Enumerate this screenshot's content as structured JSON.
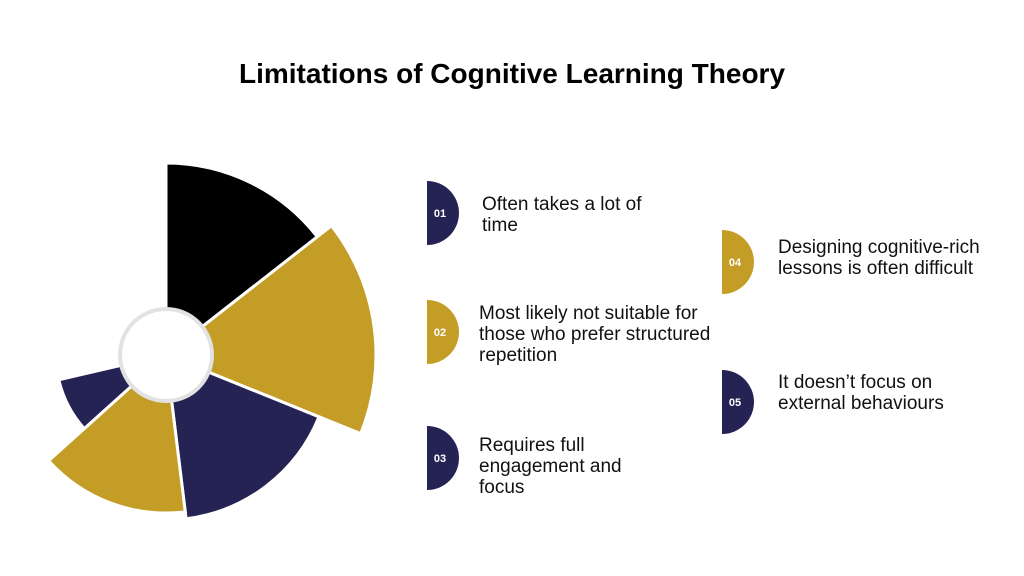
{
  "title": "Limitations of Cognitive Learning Theory",
  "items": [
    {
      "number": "01",
      "text": "Often takes a lot of time"
    },
    {
      "number": "02",
      "text": "Most likely not suitable for those who prefer structured repetition"
    },
    {
      "number": "03",
      "text": "Requires full engagement and focus"
    },
    {
      "number": "04",
      "text": "Designing cognitive-rich lessons is often difficult"
    },
    {
      "number": "05",
      "text": "It doesn’t focus on external behaviours"
    }
  ]
}
